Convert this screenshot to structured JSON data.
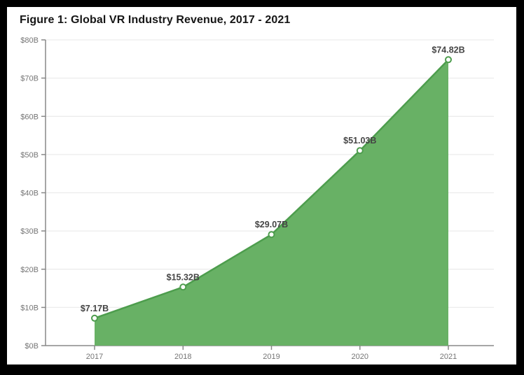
{
  "figure": {
    "title": "Figure 1: Global VR Industry Revenue, 2017 - 2021"
  },
  "chart_data": {
    "type": "area",
    "title": "Figure 1: Global VR Industry Revenue, 2017 - 2021",
    "series_name": "Global VR Industry Revenue",
    "categories": [
      "2017",
      "2018",
      "2019",
      "2020",
      "2021"
    ],
    "values": [
      7.17,
      15.32,
      29.07,
      51.03,
      74.82
    ],
    "point_labels": [
      "$7.17B",
      "$15.32B",
      "$29.07B",
      "$51.03B",
      "$74.82B"
    ],
    "xlabel": "",
    "ylabel": "",
    "ylim": [
      0,
      80
    ],
    "y_tick_step": 10,
    "y_tick_labels": [
      "$0B",
      "$10B",
      "$20B",
      "$30B",
      "$40B",
      "$50B",
      "$60B",
      "$70B",
      "$80B"
    ],
    "grid": true,
    "legend": false,
    "colors": {
      "area_fill": "#68B165",
      "line_stroke": "#4D9D4D",
      "marker_fill": "#FFFFFF",
      "marker_stroke": "#4D9D4D",
      "gridline": "#ECECEC",
      "axis": "#888888",
      "tick_label": "#757575",
      "data_label": "#454545",
      "title": "#151515",
      "page_bg": "#FFFFFF",
      "frame": "#000000"
    }
  }
}
